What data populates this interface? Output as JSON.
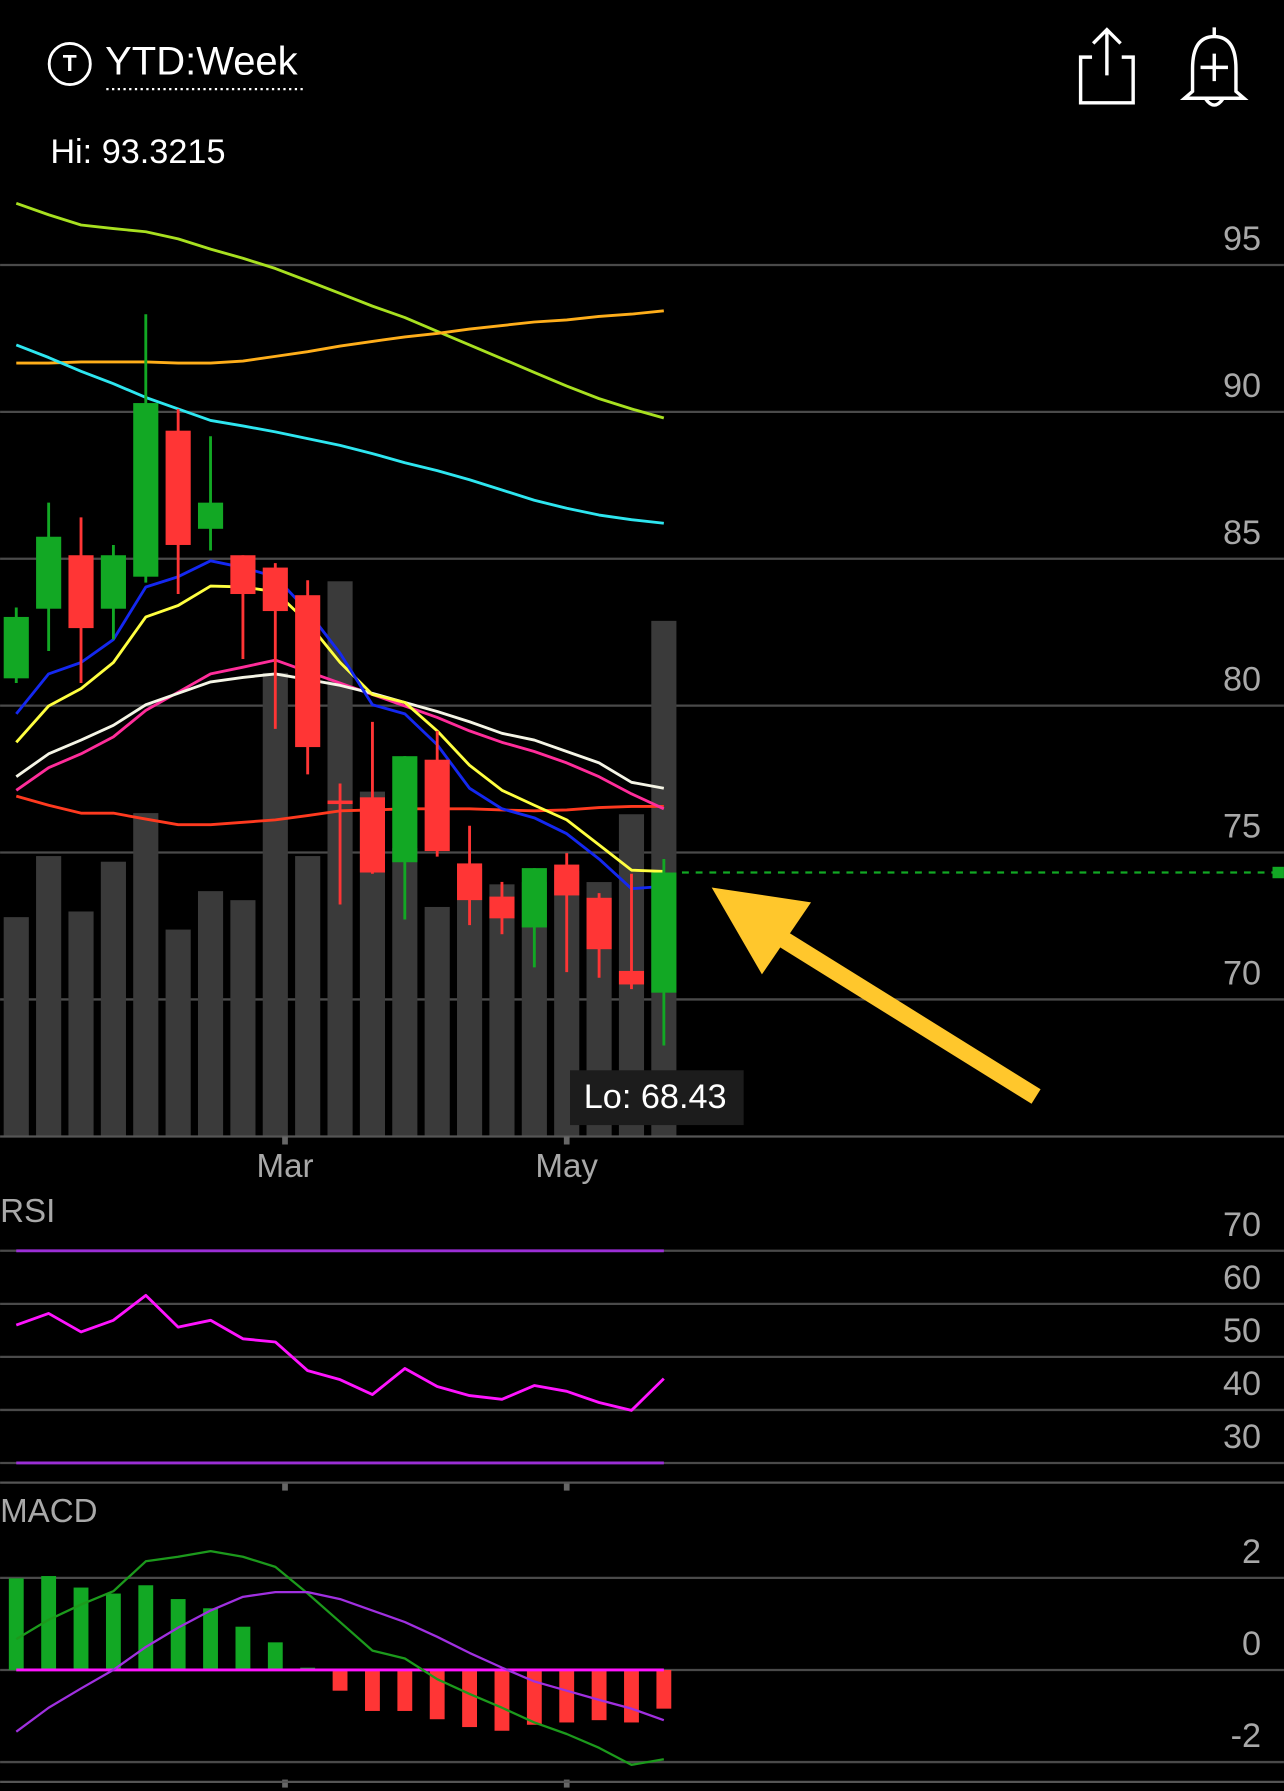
{
  "header": {
    "icon_text": "T",
    "title": "YTD:Week"
  },
  "chart_data": [
    {
      "type": "candlestick",
      "categories": [
        null,
        null,
        null,
        null,
        null,
        null,
        null,
        null,
        null,
        null,
        null,
        null,
        null,
        null,
        null,
        null,
        null,
        null,
        null,
        null,
        null
      ],
      "xlim": [
        -0.5,
        39.15
      ],
      "xticks": [
        {
          "value": 8.3,
          "label": "Mar"
        },
        {
          "value": 17,
          "label": "May"
        }
      ],
      "open": [
        80.93,
        83.3,
        85.12,
        83.3,
        84.39,
        89.36,
        86.02,
        85.12,
        84.7,
        83.76,
        76.77,
        76.88,
        74.67,
        78.16,
        74.63,
        73.5,
        72.45,
        74.59,
        73.46,
        70.97,
        70.23
      ],
      "high": [
        83.34,
        86.91,
        86.41,
        85.47,
        93.3215,
        90.1,
        89.17,
        85.12,
        84.85,
        84.27,
        77.35,
        79.45,
        78.28,
        79.14,
        75.91,
        74.0,
        74.47,
        74.98,
        73.62,
        74.28,
        74.78
      ],
      "low": [
        80.77,
        81.86,
        80.77,
        82.25,
        84.19,
        83.8,
        85.28,
        81.59,
        79.21,
        77.66,
        73.23,
        74.28,
        72.72,
        74.86,
        72.53,
        72.22,
        71.09,
        70.93,
        70.74,
        70.35,
        68.43
      ],
      "close": [
        83.02,
        85.75,
        82.64,
        85.12,
        90.3,
        85.47,
        86.91,
        83.8,
        83.22,
        78.59,
        76.65,
        74.32,
        78.28,
        75.05,
        73.38,
        72.76,
        74.47,
        73.54,
        71.71,
        70.51,
        74.32
      ],
      "up_color": "#12a824",
      "down_color": "#ff3535",
      "volume": [
        19.4,
        24.8,
        19.9,
        24.3,
        28.6,
        18.3,
        21.7,
        20.9,
        41.0,
        24.8,
        49.1,
        30.5,
        25.5,
        20.3,
        23.7,
        22.3,
        22.5,
        23.5,
        22.5,
        28.5,
        45.6
      ],
      "volume_lim": [
        0,
        50
      ],
      "volume_color": "#3a3a3a",
      "overlays": [
        {
          "color": "#a8e020",
          "values": [
            97.1,
            96.71,
            96.36,
            96.24,
            96.13,
            95.89,
            95.54,
            95.23,
            94.88,
            94.46,
            94.03,
            93.6,
            93.21,
            92.74,
            92.28,
            91.81,
            91.34,
            90.88,
            90.45,
            90.1,
            89.79
          ]
        },
        {
          "color": "#ffae1a",
          "values": [
            91.66,
            91.66,
            91.7,
            91.7,
            91.7,
            91.66,
            91.66,
            91.73,
            91.89,
            92.05,
            92.24,
            92.4,
            92.55,
            92.67,
            92.82,
            92.94,
            93.06,
            93.13,
            93.25,
            93.33,
            93.44
          ]
        },
        {
          "color": "#2ee6f0",
          "values": [
            92.28,
            91.85,
            91.38,
            90.96,
            90.49,
            90.1,
            89.71,
            89.52,
            89.32,
            89.09,
            88.86,
            88.58,
            88.27,
            88.0,
            87.69,
            87.34,
            86.99,
            86.72,
            86.49,
            86.33,
            86.21
          ]
        },
        {
          "color": "#ff3a1f",
          "values": [
            76.92,
            76.61,
            76.34,
            76.34,
            76.14,
            75.95,
            75.95,
            76.03,
            76.11,
            76.26,
            76.42,
            76.45,
            76.49,
            76.49,
            76.49,
            76.45,
            76.42,
            76.45,
            76.53,
            76.57,
            76.57
          ]
        },
        {
          "color": "#ff2d9a",
          "values": [
            77.12,
            77.89,
            78.36,
            78.94,
            79.84,
            80.46,
            81.08,
            81.31,
            81.55,
            81.16,
            80.77,
            80.38,
            79.99,
            79.6,
            79.14,
            78.75,
            78.44,
            78.05,
            77.58,
            77.0,
            76.49
          ]
        },
        {
          "color": "#f5f5e6",
          "values": [
            77.58,
            78.36,
            78.83,
            79.33,
            80.03,
            80.42,
            80.81,
            80.96,
            81.08,
            80.89,
            80.69,
            80.42,
            80.11,
            79.8,
            79.45,
            79.06,
            78.83,
            78.44,
            78.05,
            77.39,
            77.19
          ]
        },
        {
          "color": "#ffff40",
          "values": [
            78.75,
            79.99,
            80.58,
            81.47,
            83.02,
            83.41,
            84.07,
            84.04,
            83.88,
            82.83,
            81.47,
            80.38,
            80.11,
            79.14,
            77.97,
            77.12,
            76.61,
            76.11,
            75.26,
            74.4,
            74.36
          ]
        },
        {
          "color": "#1428f0",
          "values": [
            79.72,
            81.08,
            81.47,
            82.25,
            84.04,
            84.39,
            84.93,
            84.7,
            84.39,
            83.22,
            81.78,
            80.03,
            79.72,
            78.67,
            77.19,
            76.49,
            76.18,
            75.64,
            74.78,
            73.77,
            73.85
          ]
        }
      ],
      "ylim": [
        65.4,
        98
      ],
      "yticks": [
        70,
        75,
        80,
        85,
        90,
        95
      ],
      "grid": true,
      "hi_label": "Hi: 93.3215",
      "lo_label": "Lo: 68.43",
      "last_value": 74.32,
      "last_color": "#12a824"
    },
    {
      "type": "line",
      "title": "RSI",
      "ylim": [
        26.3,
        79.7
      ],
      "yticks": [
        30,
        40,
        50,
        60,
        70
      ],
      "grid": true,
      "bands": [
        30,
        70
      ],
      "band_color": "#9b2fd6",
      "series": [
        {
          "color": "#ff14ff",
          "values": [
            56.0,
            58.2,
            54.7,
            56.9,
            61.6,
            55.6,
            56.9,
            53.4,
            52.8,
            47.4,
            45.7,
            42.9,
            47.8,
            44.4,
            42.7,
            42.0,
            44.6,
            43.5,
            41.4,
            39.9,
            45.9
          ]
        }
      ]
    },
    {
      "type": "macd",
      "title": "MACD",
      "ylim": [
        -2.43,
        4.02
      ],
      "yticks": [
        -2,
        0,
        2
      ],
      "grid": true,
      "histogram": [
        1.99,
        2.04,
        1.79,
        1.66,
        1.84,
        1.54,
        1.34,
        0.94,
        0.6,
        0.05,
        -0.45,
        -0.89,
        -0.89,
        -1.07,
        -1.24,
        -1.32,
        -1.19,
        -1.14,
        -1.09,
        -1.14,
        -0.84
      ],
      "up_color": "#12a824",
      "down_color": "#ff3535",
      "zero_line": 0,
      "zero_color": "#ff14ff",
      "series": [
        {
          "color": "#1c9a1c",
          "values": [
            0.67,
            1.09,
            1.42,
            1.71,
            2.36,
            2.46,
            2.58,
            2.46,
            2.24,
            1.66,
            1.04,
            0.42,
            0.25,
            -0.2,
            -0.52,
            -0.82,
            -1.14,
            -1.39,
            -1.69,
            -2.06,
            -1.94
          ]
        },
        {
          "color": "#a030e0",
          "values": [
            -1.34,
            -0.82,
            -0.4,
            0.0,
            0.5,
            0.92,
            1.29,
            1.59,
            1.69,
            1.69,
            1.54,
            1.29,
            1.04,
            0.72,
            0.37,
            0.05,
            -0.25,
            -0.45,
            -0.65,
            -0.84,
            -1.09
          ]
        }
      ]
    }
  ]
}
